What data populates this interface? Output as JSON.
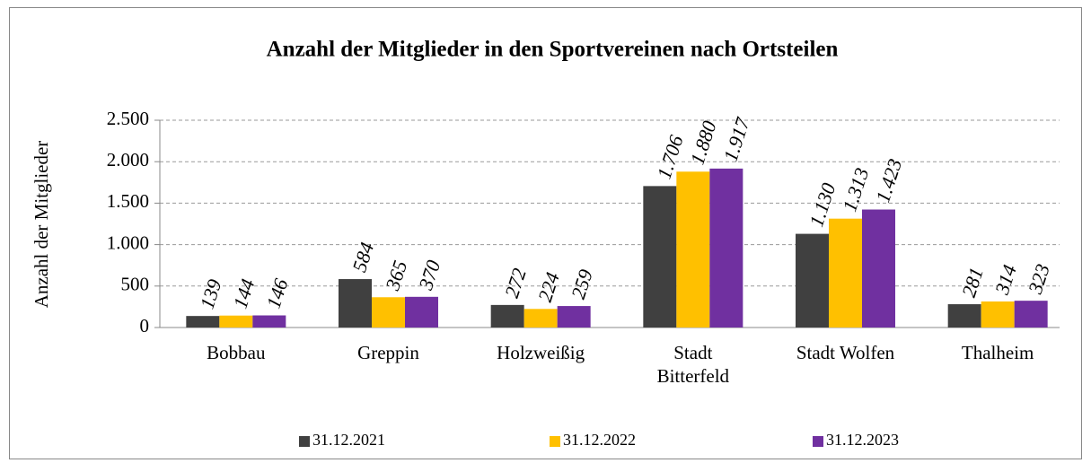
{
  "chart_data": {
    "type": "bar",
    "title": "Anzahl der Mitglieder in den Sportvereinen nach Ortsteilen",
    "y_label": "Anzahl der Mitglieder",
    "categories": [
      "Bobbau",
      "Greppin",
      "Holzweißig",
      "Stadt Bitterfeld",
      "Stadt Wolfen",
      "Thalheim"
    ],
    "series": [
      {
        "name": "31.12.2021",
        "color": "#404040",
        "values": [
          139,
          584,
          272,
          1706,
          1130,
          281
        ],
        "value_labels": [
          "139",
          "584",
          "272",
          "1.706",
          "1.130",
          "281"
        ]
      },
      {
        "name": "31.12.2022",
        "color": "#ffc000",
        "values": [
          144,
          365,
          224,
          1880,
          1313,
          314
        ],
        "value_labels": [
          "144",
          "365",
          "224",
          "1.880",
          "1.313",
          "314"
        ]
      },
      {
        "name": "31.12.2023",
        "color": "#7030a0",
        "values": [
          146,
          370,
          259,
          1917,
          1423,
          323
        ],
        "value_labels": [
          "146",
          "370",
          "259",
          "1.917",
          "1.423",
          "323"
        ]
      }
    ],
    "ylim": [
      0,
      2500
    ],
    "yticks": [
      0,
      500,
      {
        "value": 1000,
        "label": "1.000"
      },
      {
        "value": 1500,
        "label": "1.500"
      },
      {
        "value": 2000,
        "label": "2.000"
      },
      {
        "value": 2500,
        "label": "2.500"
      }
    ],
    "grid": true,
    "legend": "bottom"
  }
}
